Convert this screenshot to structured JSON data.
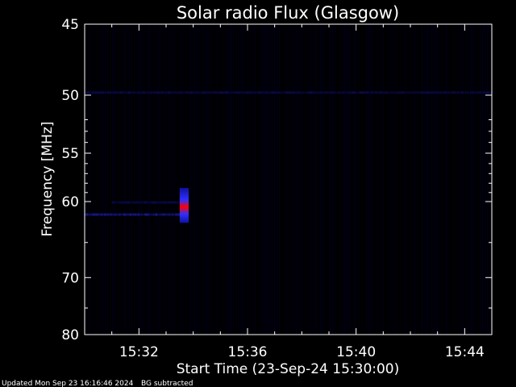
{
  "chart_data": {
    "type": "heatmap",
    "title": "Solar radio Flux (Glasgow)",
    "xlabel": "Start Time (23-Sep-24 15:30:00)",
    "ylabel": "Frequency [MHz]",
    "x_range": [
      "15:30:00",
      "15:45:00"
    ],
    "ylim": [
      80,
      45
    ],
    "y_scale": "reciprocal",
    "x_ticks": [
      "15:32",
      "15:36",
      "15:40",
      "15:44"
    ],
    "y_ticks": [
      45,
      50,
      55,
      60,
      70,
      80
    ],
    "colormap": "black-blue-red",
    "features": [
      {
        "name": "interference band",
        "freq_mhz": 49.8,
        "start": "15:30:00",
        "end": "15:45:00",
        "intensity": 0.25
      },
      {
        "name": "emission band",
        "freq_mhz": 61.5,
        "start": "15:30:00",
        "end": "15:33:40",
        "intensity": 0.35
      },
      {
        "name": "emission band",
        "freq_mhz": 60.1,
        "start": "15:31:00",
        "end": "15:33:40",
        "intensity": 0.25
      },
      {
        "name": "burst",
        "freq_range_mhz": [
          58.5,
          62.5
        ],
        "start": "15:33:30",
        "end": "15:33:50",
        "intensity": 1.0
      }
    ],
    "grid": false
  },
  "footer": {
    "updated": "Updated Mon Sep 23 16:16:46 2024",
    "note": "BG subtracted"
  },
  "colors": {
    "background": "#000000",
    "low": "#00006a",
    "mid": "#2a2aff",
    "high": "#ff0000"
  }
}
